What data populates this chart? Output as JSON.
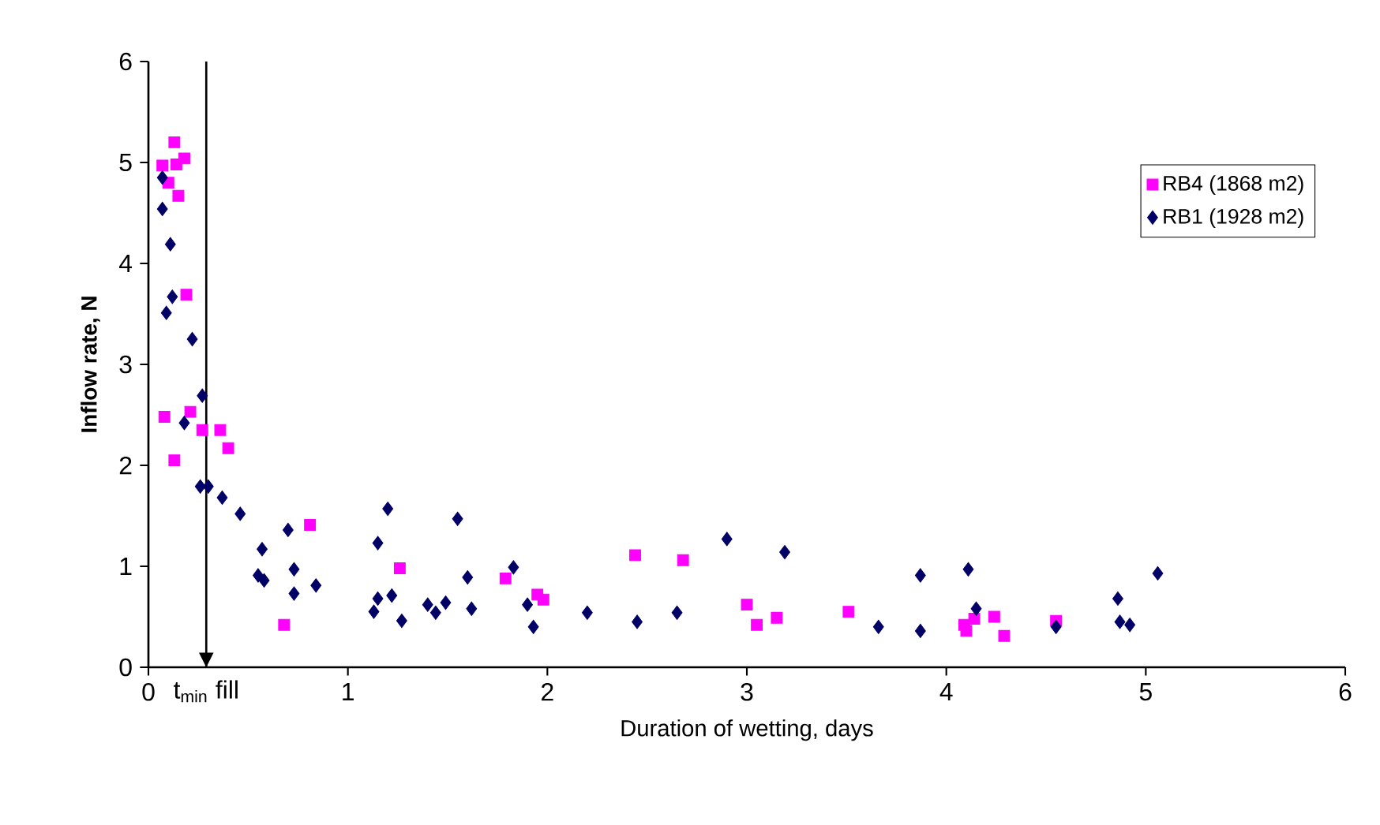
{
  "chart_data": {
    "type": "scatter",
    "xlabel": "Duration of wetting, days",
    "ylabel": "Inflow rate, N",
    "xlim": [
      0,
      6
    ],
    "ylim": [
      0,
      6
    ],
    "xticks": [
      0,
      1,
      2,
      3,
      4,
      5,
      6
    ],
    "yticks": [
      0,
      1,
      2,
      3,
      4,
      5,
      6
    ],
    "grid": false,
    "legend": "top right",
    "ref_lines": [
      {
        "axis": "x",
        "value": 0.29,
        "label": "t$_{min}$ fill",
        "color": "#000000"
      }
    ],
    "series": [
      {
        "name": "RB4 (1868 m2)",
        "color": "#ff00ff",
        "marker": "square",
        "x": [
          0.13,
          0.07,
          0.14,
          0.18,
          0.1,
          0.15,
          0.19,
          0.08,
          0.21,
          0.13,
          0.27,
          0.36,
          0.4,
          0.68,
          0.81,
          1.26,
          1.79,
          1.95,
          1.98,
          2.44,
          2.68,
          3.0,
          3.05,
          3.15,
          3.51,
          4.09,
          4.1,
          4.14,
          4.24,
          4.29,
          4.55
        ],
        "values": [
          5.2,
          4.97,
          4.98,
          5.04,
          4.8,
          4.67,
          3.69,
          2.48,
          2.53,
          2.05,
          2.35,
          2.35,
          2.17,
          0.42,
          1.41,
          0.98,
          0.88,
          0.72,
          0.67,
          1.11,
          1.06,
          0.62,
          0.42,
          0.49,
          0.55,
          0.42,
          0.36,
          0.48,
          0.5,
          0.31,
          0.46
        ]
      },
      {
        "name": "RB1 (1928 m2)",
        "color": "#000066",
        "marker": "diamond",
        "x": [
          0.07,
          0.07,
          0.11,
          0.12,
          0.09,
          0.22,
          0.27,
          0.18,
          0.26,
          0.3,
          0.37,
          0.46,
          0.57,
          0.55,
          0.58,
          0.7,
          0.73,
          0.73,
          0.84,
          1.2,
          1.15,
          1.13,
          1.15,
          1.22,
          1.27,
          1.4,
          1.44,
          1.49,
          1.55,
          1.6,
          1.62,
          1.83,
          1.9,
          1.93,
          2.2,
          2.45,
          2.65,
          2.9,
          3.19,
          3.66,
          3.87,
          3.87,
          4.11,
          4.15,
          4.55,
          4.86,
          4.87,
          4.92,
          5.06
        ],
        "values": [
          4.85,
          4.54,
          4.19,
          3.67,
          3.51,
          3.25,
          2.69,
          2.42,
          1.79,
          1.79,
          1.68,
          1.52,
          1.17,
          0.91,
          0.86,
          1.36,
          0.97,
          0.73,
          0.81,
          1.57,
          1.23,
          0.55,
          0.68,
          0.71,
          0.46,
          0.62,
          0.54,
          0.64,
          1.47,
          0.89,
          0.58,
          0.99,
          0.62,
          0.4,
          0.54,
          0.45,
          0.54,
          1.27,
          1.14,
          0.4,
          0.91,
          0.36,
          0.97,
          0.58,
          0.4,
          0.68,
          0.45,
          0.42,
          0.93
        ]
      }
    ]
  }
}
